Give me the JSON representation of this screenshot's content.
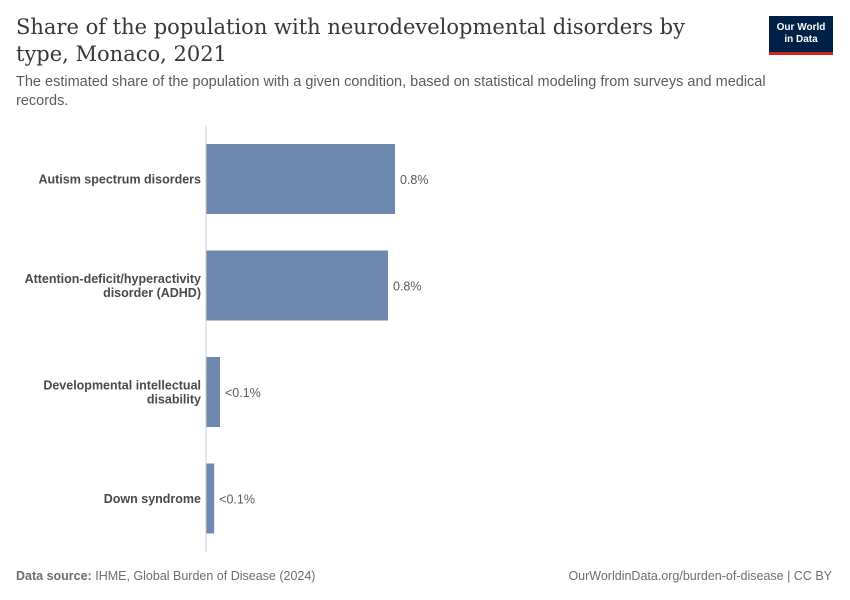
{
  "header": {
    "title": "Share of the population with neurodevelopmental disorders by type, Monaco, 2021",
    "subtitle": "The estimated share of the population with a given condition, based on statistical modeling from surveys and medical records."
  },
  "logo": {
    "line1": "Our World",
    "line2": "in Data"
  },
  "colors": {
    "bar": "#6f88b0",
    "axis": "#cccccc",
    "label": "#4a4a4a",
    "value": "#5b5b5b"
  },
  "chart_data": {
    "type": "bar",
    "orientation": "horizontal",
    "unit": "%",
    "categories": [
      [
        "Autism spectrum disorders"
      ],
      [
        "Attention-deficit/hyperactivity",
        "disorder (ADHD)"
      ],
      [
        "Developmental intellectual",
        "disability"
      ],
      [
        "Down syndrome"
      ]
    ],
    "values": [
      0.81,
      0.78,
      0.06,
      0.035
    ],
    "value_labels": [
      "0.8%",
      "0.8%",
      "<0.1%",
      "<0.1%"
    ],
    "xlim": [
      0,
      0.81
    ]
  },
  "footer": {
    "source_label": "Data source:",
    "source_text": "IHME, Global Burden of Disease (2024)",
    "right_text": "OurWorldinData.org/burden-of-disease | CC BY"
  }
}
